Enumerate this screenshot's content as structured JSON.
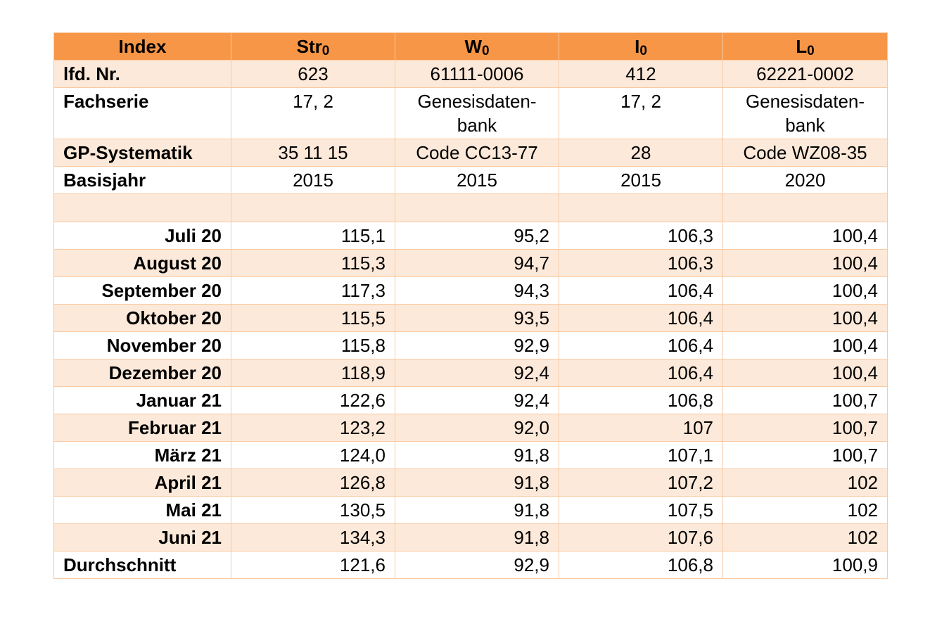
{
  "header": {
    "label": "Index",
    "columns": [
      {
        "base": "Str",
        "sub": "0"
      },
      {
        "base": "W",
        "sub": "0"
      },
      {
        "base": "I",
        "sub": "0"
      },
      {
        "base": "L",
        "sub": "0"
      }
    ]
  },
  "meta": {
    "lfd": {
      "label": "lfd. Nr.",
      "values": [
        "623",
        "61111-0006",
        "412",
        "62221-0002"
      ]
    },
    "fachserie": {
      "label": "Fachserie",
      "values": [
        "17, 2",
        "Genesisdaten-bank",
        "17, 2",
        "Genesisdaten-bank"
      ]
    },
    "gp": {
      "label": "GP-Systematik",
      "values": [
        "35 11 15",
        "Code CC13-77",
        "28",
        "Code WZ08-35"
      ]
    },
    "basisjahr": {
      "label": "Basisjahr",
      "values": [
        "2015",
        "2015",
        "2015",
        "2020"
      ]
    }
  },
  "rows": [
    {
      "month": "Juli 20",
      "values": [
        "115,1",
        "95,2",
        "106,3",
        "100,4"
      ]
    },
    {
      "month": "August 20",
      "values": [
        "115,3",
        "94,7",
        "106,3",
        "100,4"
      ]
    },
    {
      "month": "September 20",
      "values": [
        "117,3",
        "94,3",
        "106,4",
        "100,4"
      ]
    },
    {
      "month": "Oktober 20",
      "values": [
        "115,5",
        "93,5",
        "106,4",
        "100,4"
      ]
    },
    {
      "month": "November 20",
      "values": [
        "115,8",
        "92,9",
        "106,4",
        "100,4"
      ]
    },
    {
      "month": "Dezember 20",
      "values": [
        "118,9",
        "92,4",
        "106,4",
        "100,4"
      ]
    },
    {
      "month": "Januar 21",
      "values": [
        "122,6",
        "92,4",
        "106,8",
        "100,7"
      ]
    },
    {
      "month": "Februar 21",
      "values": [
        "123,2",
        "92,0",
        "107",
        "100,7"
      ]
    },
    {
      "month": "März 21",
      "values": [
        "124,0",
        "91,8",
        "107,1",
        "100,7"
      ]
    },
    {
      "month": "April 21",
      "values": [
        "126,8",
        "91,8",
        "107,2",
        "102"
      ]
    },
    {
      "month": "Mai 21",
      "values": [
        "130,5",
        "91,8",
        "107,5",
        "102"
      ]
    },
    {
      "month": "Juni 21",
      "values": [
        "134,3",
        "91,8",
        "107,6",
        "102"
      ]
    }
  ],
  "average": {
    "label": "Durchschnitt",
    "values": [
      "121,6",
      "92,9",
      "106,8",
      "100,9"
    ]
  },
  "colors": {
    "header_bg": "#f79646",
    "band_bg": "#fde9d9",
    "border": "#f9c9a2"
  }
}
